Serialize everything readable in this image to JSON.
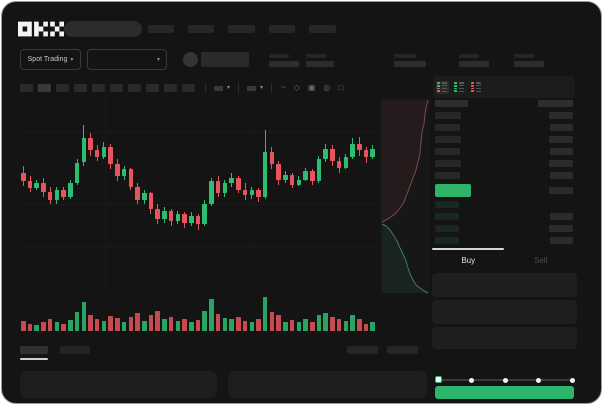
{
  "brand": {
    "name": "OKX"
  },
  "header": {
    "nav_items": [
      26,
      26,
      27,
      26,
      27
    ]
  },
  "subheader": {
    "market_selector_label": "Spot Trading",
    "stats": [
      {
        "label_w": 20,
        "value_w": 30
      },
      {
        "label_w": 20,
        "value_w": 28
      },
      {
        "label_w": 22,
        "value_w": 32
      },
      {
        "label_w": 20,
        "value_w": 30
      },
      {
        "label_w": 20,
        "value_w": 30
      }
    ]
  },
  "toolbar": {
    "block_count": 10,
    "active_index": 1,
    "dropdowns": [
      {
        "name": "interval-dropdown"
      },
      {
        "name": "indicator-dropdown"
      }
    ],
    "icons": [
      {
        "name": "wave-icon",
        "glyph": "~"
      },
      {
        "name": "draw-icon",
        "glyph": "◇"
      },
      {
        "name": "camera-icon",
        "glyph": "▣"
      },
      {
        "name": "settings-icon",
        "glyph": "◎"
      },
      {
        "name": "fullscreen-icon",
        "glyph": "□"
      }
    ]
  },
  "colors": {
    "up": "#2ebd70",
    "down": "#e8545c",
    "accent_green": "#2eb56d",
    "price_bar_green": "#2eb468",
    "depth_ask_line": "#7a4a4e",
    "depth_bid_line": "#3f7a6e",
    "depth_ask_fill": "rgba(170,70,75,0.10)",
    "depth_bid_fill": "rgba(45,160,120,0.10)"
  },
  "chart_data": {
    "type": "candlestick",
    "title": "",
    "xlabel": "",
    "ylabel": "",
    "ylim": [
      0,
      100
    ],
    "grid": "faint-horizontal",
    "candles_ohlc": [
      [
        60,
        64,
        52,
        55
      ],
      [
        55,
        58,
        49,
        51
      ],
      [
        51,
        56,
        50,
        54
      ],
      [
        54,
        57,
        46,
        49
      ],
      [
        49,
        52,
        42,
        44
      ],
      [
        44,
        52,
        42,
        50
      ],
      [
        50,
        52,
        44,
        46
      ],
      [
        46,
        56,
        45,
        54
      ],
      [
        54,
        68,
        53,
        66
      ],
      [
        66,
        88,
        64,
        80
      ],
      [
        80,
        83,
        70,
        73
      ],
      [
        73,
        76,
        67,
        69
      ],
      [
        69,
        78,
        68,
        75
      ],
      [
        75,
        77,
        62,
        65
      ],
      [
        65,
        68,
        55,
        58
      ],
      [
        58,
        64,
        56,
        62
      ],
      [
        62,
        63,
        50,
        52
      ],
      [
        52,
        54,
        42,
        44
      ],
      [
        44,
        50,
        42,
        48
      ],
      [
        48,
        49,
        36,
        39
      ],
      [
        39,
        42,
        30,
        33
      ],
      [
        33,
        40,
        31,
        38
      ],
      [
        38,
        39,
        29,
        32
      ],
      [
        32,
        38,
        30,
        36
      ],
      [
        36,
        37,
        28,
        31
      ],
      [
        31,
        37,
        29,
        35
      ],
      [
        35,
        36,
        27,
        30
      ],
      [
        30,
        44,
        29,
        42
      ],
      [
        42,
        57,
        41,
        55
      ],
      [
        55,
        58,
        46,
        48
      ],
      [
        48,
        56,
        46,
        54
      ],
      [
        54,
        60,
        52,
        57
      ],
      [
        57,
        58,
        48,
        50
      ],
      [
        50,
        54,
        44,
        47
      ],
      [
        47,
        52,
        45,
        50
      ],
      [
        50,
        51,
        43,
        46
      ],
      [
        46,
        85,
        45,
        72
      ],
      [
        72,
        75,
        62,
        65
      ],
      [
        65,
        67,
        53,
        56
      ],
      [
        56,
        61,
        54,
        59
      ],
      [
        59,
        60,
        51,
        53
      ],
      [
        53,
        58,
        52,
        56
      ],
      [
        56,
        63,
        55,
        61
      ],
      [
        61,
        62,
        53,
        55
      ],
      [
        55,
        70,
        54,
        68
      ],
      [
        68,
        77,
        66,
        74
      ],
      [
        74,
        76,
        64,
        67
      ],
      [
        67,
        69,
        60,
        63
      ],
      [
        63,
        71,
        62,
        69
      ],
      [
        69,
        80,
        68,
        77
      ],
      [
        77,
        81,
        70,
        73
      ],
      [
        73,
        75,
        66,
        69
      ],
      [
        69,
        76,
        68,
        74
      ]
    ],
    "volumes": [
      30,
      22,
      18,
      26,
      34,
      28,
      20,
      32,
      55,
      85,
      48,
      36,
      30,
      44,
      38,
      26,
      40,
      52,
      30,
      46,
      58,
      34,
      40,
      30,
      36,
      28,
      32,
      60,
      95,
      50,
      38,
      34,
      42,
      30,
      26,
      34,
      100,
      55,
      46,
      28,
      32,
      26,
      34,
      28,
      48,
      54,
      40,
      34,
      30,
      46,
      36,
      22,
      28
    ],
    "depth": {
      "asks_line": [
        [
          48,
          2
        ],
        [
          46,
          10
        ],
        [
          45,
          16
        ],
        [
          44,
          26
        ],
        [
          42,
          34
        ],
        [
          41,
          44
        ],
        [
          40,
          56
        ],
        [
          38,
          64
        ],
        [
          36,
          72
        ],
        [
          33,
          80
        ],
        [
          30,
          88
        ],
        [
          27,
          96
        ],
        [
          24,
          104
        ],
        [
          20,
          110
        ],
        [
          16,
          115
        ],
        [
          11,
          119
        ],
        [
          6,
          122
        ],
        [
          2,
          124
        ]
      ],
      "bids_line": [
        [
          2,
          126
        ],
        [
          6,
          128
        ],
        [
          10,
          132
        ],
        [
          14,
          138
        ],
        [
          17,
          143
        ],
        [
          20,
          150
        ],
        [
          23,
          156
        ],
        [
          26,
          163
        ],
        [
          28,
          170
        ],
        [
          30,
          176
        ],
        [
          33,
          182
        ],
        [
          36,
          187
        ],
        [
          40,
          190
        ],
        [
          44,
          193
        ],
        [
          48,
          195
        ]
      ]
    }
  },
  "orderbook": {
    "mode_icons": [
      {
        "name": "orderbook-combined-icon",
        "rows": [
          "g",
          "g",
          "r",
          "r"
        ],
        "active": true
      },
      {
        "name": "orderbook-bids-icon",
        "rows": [
          "g",
          "g",
          "g",
          "g"
        ],
        "active": false
      },
      {
        "name": "orderbook-asks-icon",
        "rows": [
          "r",
          "r",
          "r",
          "r"
        ],
        "active": false
      }
    ],
    "header": {
      "price_w": 33,
      "amount_w": 35
    },
    "asks": [
      {
        "p": 26,
        "a": 24
      },
      {
        "p": 25,
        "a": 23
      },
      {
        "p": 26,
        "a": 24
      },
      {
        "p": 25,
        "a": 23
      },
      {
        "p": 26,
        "a": 24
      },
      {
        "p": 25,
        "a": 23
      }
    ],
    "price_row": {
      "w": 36,
      "a": 24
    },
    "bids": [
      {
        "p": 24,
        "a": null
      },
      {
        "p": 24,
        "a": 23
      },
      {
        "p": 24,
        "a": 24
      },
      {
        "p": 24,
        "a": 23
      }
    ]
  },
  "trade_panel": {
    "buy_label": "Buy",
    "sell_label": "Sell",
    "input_heights": [
      24,
      24,
      22
    ],
    "slider_stops": 5,
    "slider_position_index": 0
  }
}
